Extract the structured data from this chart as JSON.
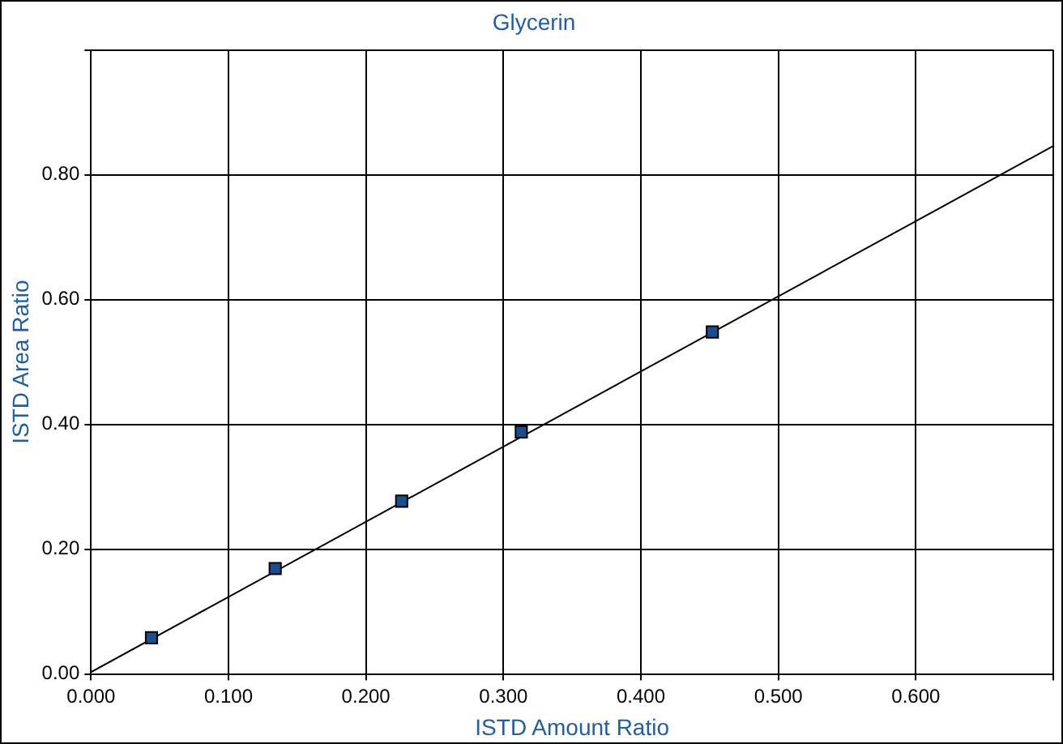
{
  "chart_data": {
    "type": "scatter",
    "title": "Glycerin",
    "xlabel": "ISTD Amount Ratio",
    "ylabel": "ISTD Area Ratio",
    "xlim": [
      0,
      0.7
    ],
    "ylim": [
      0,
      1
    ],
    "xticks": [
      {
        "value": 0,
        "label": "0.000"
      },
      {
        "value": 0.1,
        "label": "0.100"
      },
      {
        "value": 0.2,
        "label": "0.200"
      },
      {
        "value": 0.3,
        "label": "0.300"
      },
      {
        "value": 0.4,
        "label": "0.400"
      },
      {
        "value": 0.5,
        "label": "0.500"
      },
      {
        "value": 0.6,
        "label": "0.600"
      },
      {
        "value": 0.7,
        "label": null
      }
    ],
    "yticks": [
      {
        "value": 0,
        "label": "0.00"
      },
      {
        "value": 0.2,
        "label": "0.20"
      },
      {
        "value": 0.4,
        "label": "0.40"
      },
      {
        "value": 0.6,
        "label": "0.60"
      },
      {
        "value": 0.8,
        "label": "0.80"
      },
      {
        "value": 1,
        "label": null
      }
    ],
    "grid": true,
    "marker": "square",
    "series": [
      {
        "type": "scatter",
        "color": "#1a4f8f",
        "x": [
          0.044,
          0.134,
          0.226,
          0.313,
          0.452
        ],
        "values": [
          0.058,
          0.169,
          0.277,
          0.388,
          0.548
        ]
      },
      {
        "type": "line",
        "color": "#000000",
        "marker": "none",
        "x": [
          0,
          0.7
        ],
        "values": [
          0.003,
          0.846
        ]
      }
    ]
  }
}
